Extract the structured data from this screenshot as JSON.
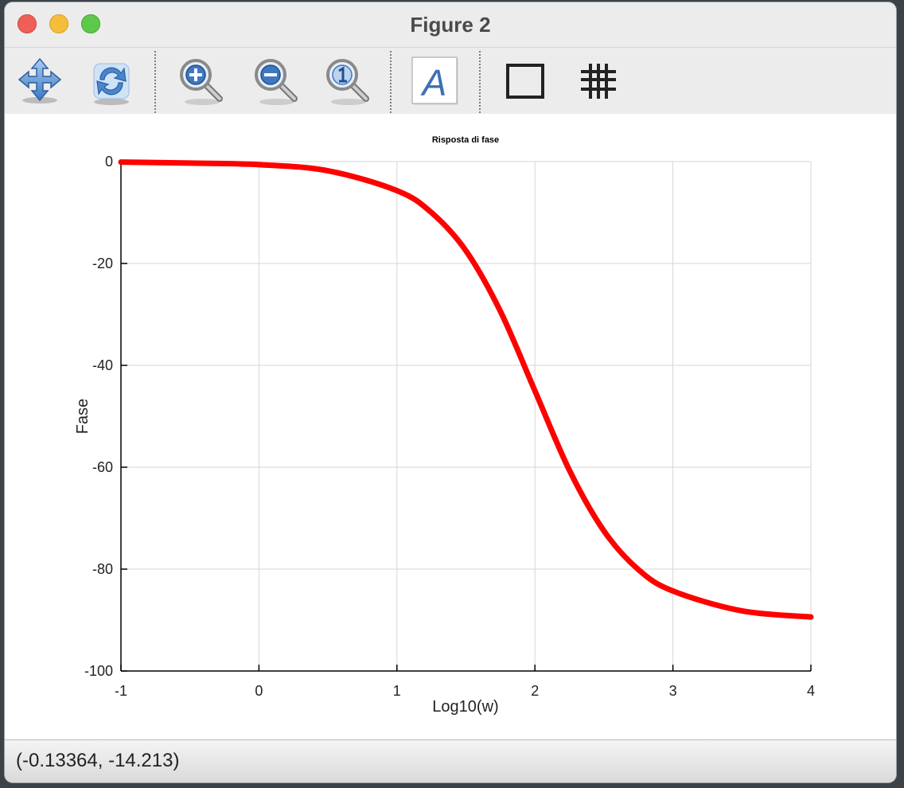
{
  "window": {
    "title": "Figure 2"
  },
  "toolbar": {
    "tools": [
      {
        "name": "pan-tool",
        "icon": "arrows-move-icon"
      },
      {
        "name": "rotate-tool",
        "icon": "rotate-icon"
      },
      {
        "name": "zoom-in-tool",
        "icon": "zoom-in-icon"
      },
      {
        "name": "zoom-out-tool",
        "icon": "zoom-out-icon"
      },
      {
        "name": "zoom-reset-tool",
        "icon": "zoom-original-icon"
      },
      {
        "name": "text-tool",
        "icon": "text-a-icon"
      },
      {
        "name": "box-tool",
        "icon": "square-icon"
      },
      {
        "name": "grid-tool",
        "icon": "grid-icon"
      }
    ]
  },
  "status": {
    "coordinates": "(-0.13364, -14.213)"
  },
  "chart_data": {
    "type": "line",
    "title": "Risposta di fase",
    "xlabel": "Log10(w)",
    "ylabel": "Fase",
    "xlim": [
      -1,
      4
    ],
    "ylim": [
      -100,
      0
    ],
    "xticks": [
      -1,
      0,
      1,
      2,
      3,
      4
    ],
    "yticks": [
      0,
      -20,
      -40,
      -60,
      -80,
      -100
    ],
    "xtick_labels": [
      "-1",
      "0",
      "1",
      "2",
      "3",
      "4"
    ],
    "ytick_labels": [
      "0",
      "-20",
      "-40",
      "-60",
      "-80",
      "-100"
    ],
    "grid": true,
    "series": [
      {
        "color": "#ff0000",
        "x": [
          -1,
          -0.5,
          0,
          0.5,
          1,
          1.25,
          1.5,
          1.75,
          2,
          2.25,
          2.5,
          2.75,
          3,
          3.5,
          4
        ],
        "y": [
          -0.1,
          -0.3,
          -0.6,
          -1.8,
          -5.7,
          -10,
          -17.5,
          -29.4,
          -45,
          -60.6,
          -72.5,
          -80.1,
          -84.3,
          -88.2,
          -89.4
        ]
      }
    ]
  }
}
